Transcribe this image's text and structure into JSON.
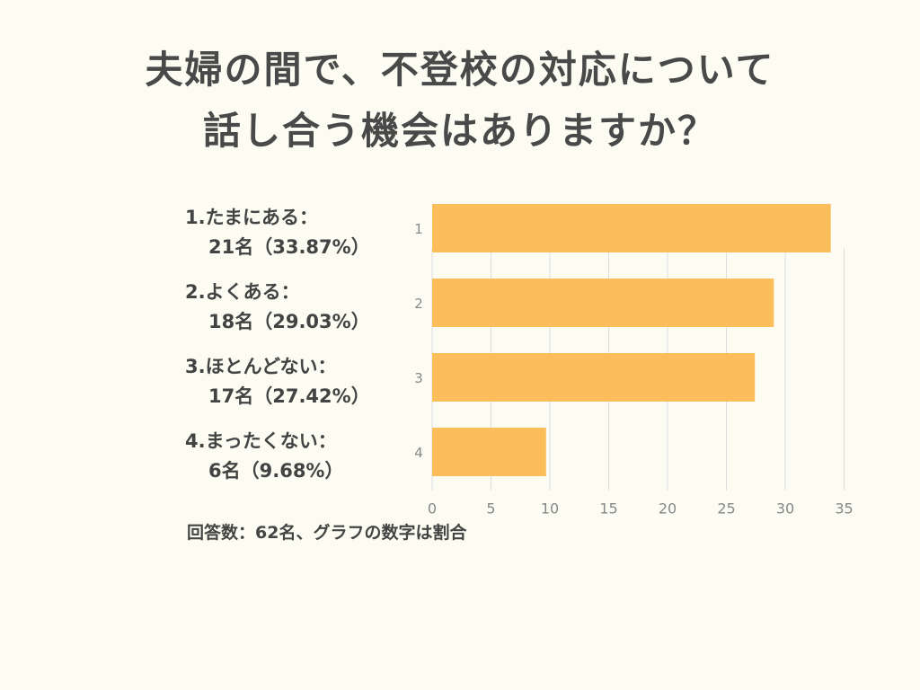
{
  "title": {
    "line1": "夫婦の間で、不登校の対応について",
    "line2": "話し合う機会はありますか？"
  },
  "categories": [
    {
      "label": "1.たまにある：",
      "count": "21名（33.87%）"
    },
    {
      "label": "2.よくある：",
      "count": "18名（29.03%）"
    },
    {
      "label": "3.ほとんどない：",
      "count": "17名（27.42%）"
    },
    {
      "label": "4.まったくない：",
      "count": "6名（9.68%）"
    }
  ],
  "note": "回答数：62名、グラフの数字は割合",
  "chart_data": {
    "type": "bar",
    "orientation": "horizontal",
    "categories": [
      "1",
      "2",
      "3",
      "4"
    ],
    "values": [
      33.87,
      29.03,
      27.42,
      9.68
    ],
    "xlim": [
      0,
      35
    ],
    "xticks": [
      0,
      5,
      10,
      15,
      20,
      25,
      30,
      35
    ],
    "grid": "vertical",
    "bar_color": "#fcbd5b",
    "grid_color": "#dddddd"
  }
}
